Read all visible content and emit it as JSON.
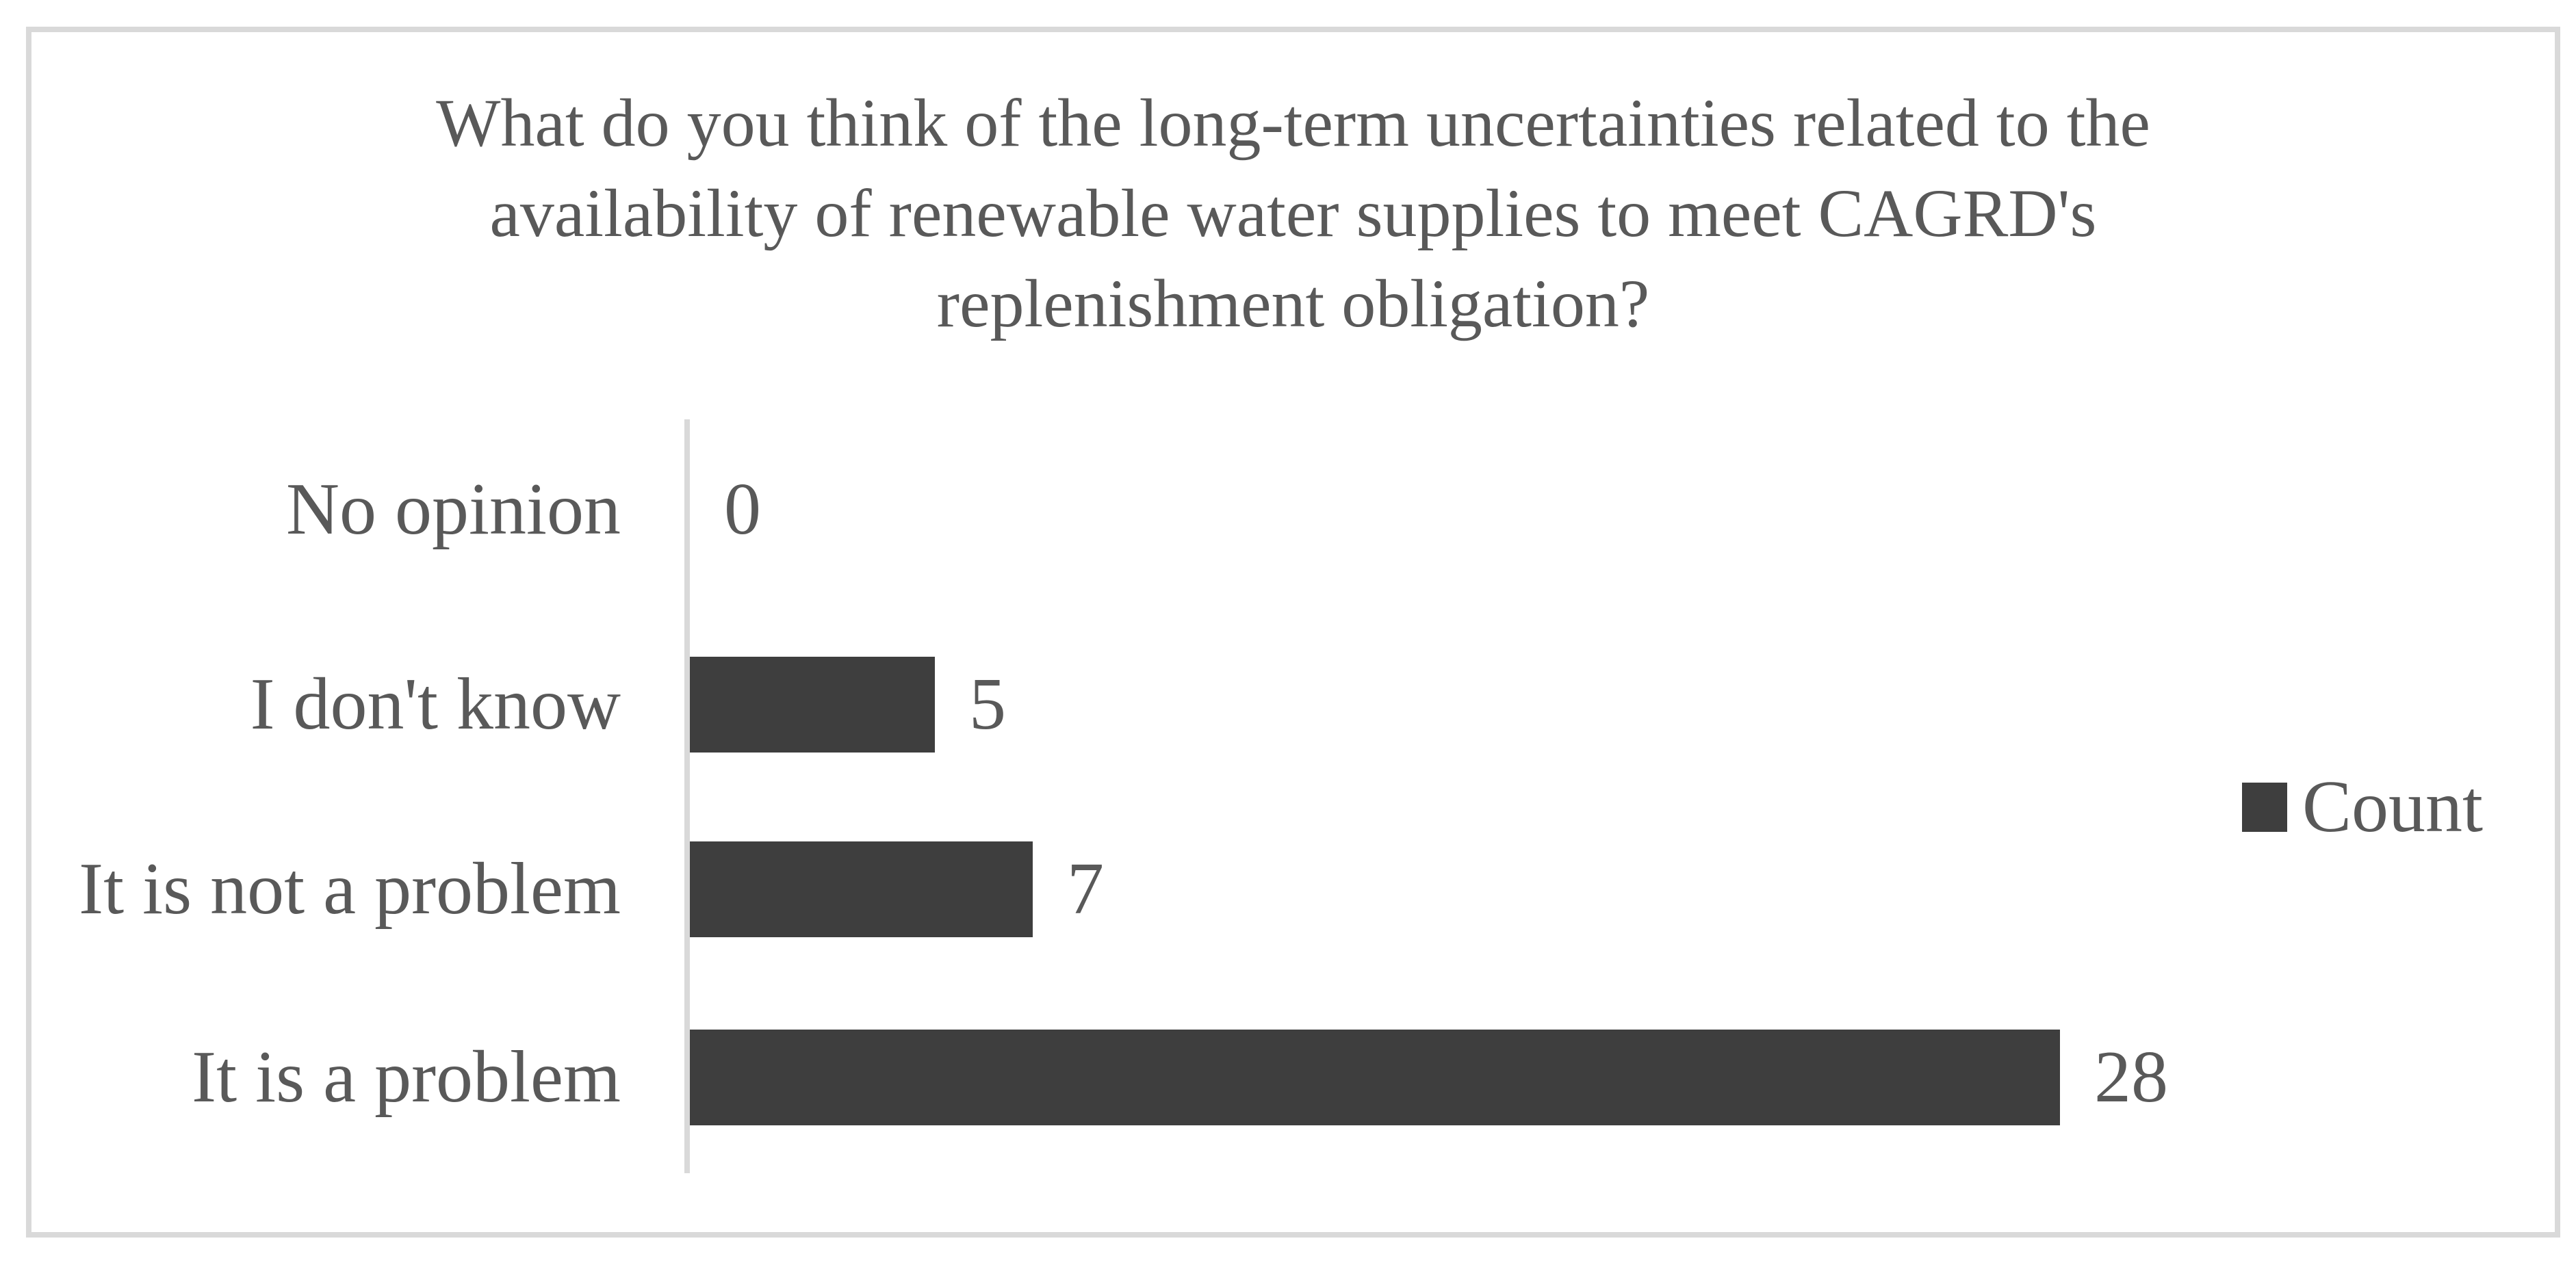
{
  "chart_data": {
    "type": "bar",
    "orientation": "horizontal",
    "title": "What do you think of the long-term uncertainties related to the availability of renewable water supplies to meet CAGRD's replenishment obligation?",
    "title_lines": [
      "What do you think of the long-term uncertainties related to the",
      "availability of renewable water supplies to meet CAGRD's",
      "replenishment obligation?"
    ],
    "categories": [
      "No opinion",
      "I don't know",
      "It is not a problem",
      "It is a problem"
    ],
    "values": [
      0,
      5,
      7,
      28
    ],
    "series": [
      {
        "name": "Count",
        "values": [
          0,
          5,
          7,
          28
        ]
      }
    ],
    "data_labels": [
      "0",
      "5",
      "7",
      "28"
    ],
    "xlabel": "",
    "ylabel": "",
    "xlim": [
      0,
      30
    ],
    "grid": false,
    "legend_position": "right",
    "colors": {
      "bar": "#3e3e3e",
      "text": "#595959",
      "axis_line": "#d9d9d9",
      "frame_border": "#d9d9d9",
      "background": "#ffffff"
    }
  }
}
